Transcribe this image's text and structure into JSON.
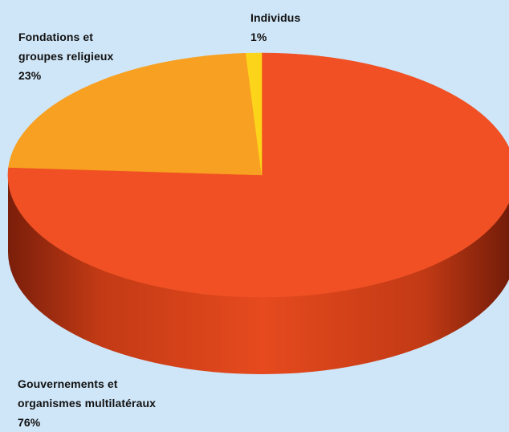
{
  "chart_data": {
    "type": "pie",
    "style": "3d",
    "slices": [
      {
        "label": "Gouvernements et organismes multilatéraux",
        "value": 76,
        "value_label": "76%",
        "color": "#f05023"
      },
      {
        "label": "Fondations et groupes religieux",
        "value": 23,
        "value_label": "23%",
        "color": "#f7a021"
      },
      {
        "label": "Individus",
        "value": 1,
        "value_label": "1%",
        "color": "#fcd41a"
      }
    ]
  },
  "labels": [
    {
      "line1": "Gouvernements et",
      "line2": "organismes multilatéraux",
      "pct": "76%"
    },
    {
      "line1": "Fondations et",
      "line2": "groupes religieux",
      "pct": "23%"
    },
    {
      "line1": "Individus",
      "pct": "1%"
    }
  ],
  "background_color": "#cfe6f8"
}
